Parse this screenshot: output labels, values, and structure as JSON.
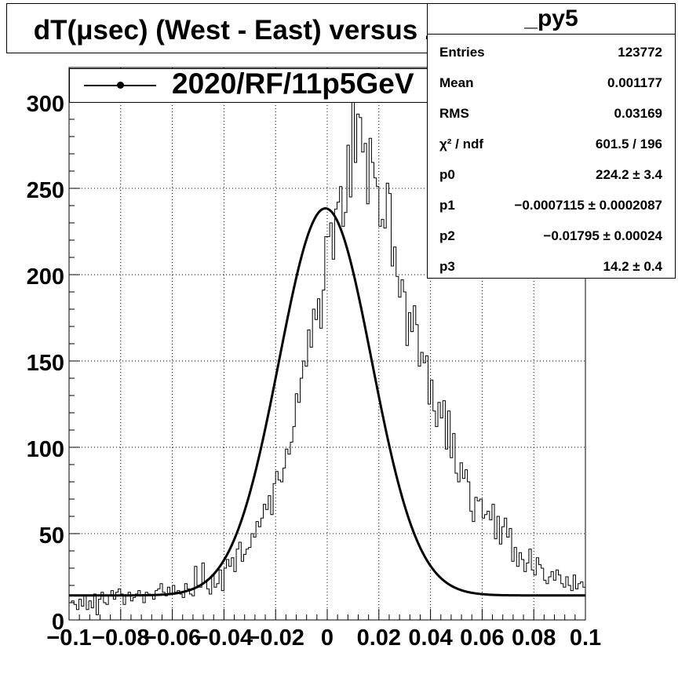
{
  "title": "dT(μsec) (West - East) versus Z",
  "legend": {
    "label": "2020/RF/11p5GeV"
  },
  "stats": {
    "name": "_py5",
    "rows": [
      {
        "key": "Entries",
        "value": "123772"
      },
      {
        "key": "Mean",
        "value": "0.001177"
      },
      {
        "key": "RMS",
        "value": "0.03169"
      },
      {
        "key": "χ² / ndf",
        "value": "601.5 / 196"
      },
      {
        "key": "p0",
        "value": "224.2 ± 3.4"
      },
      {
        "key": "p1",
        "value": "−0.0007115 ± 0.0002087"
      },
      {
        "key": "p2",
        "value": "−0.01795 ± 0.00024"
      },
      {
        "key": "p3",
        "value": "14.2 ± 0.4"
      }
    ]
  },
  "chart_data": {
    "type": "line",
    "xlim": [
      -0.1,
      0.1
    ],
    "ylim": [
      0,
      320
    ],
    "grid": true,
    "x_ticks": [
      -0.1,
      -0.08,
      -0.06,
      -0.04,
      -0.02,
      0,
      0.02,
      0.04,
      0.06,
      0.08,
      0.1
    ],
    "x_tick_labels": [
      "−0.1",
      "−0.08",
      "−0.06",
      "−0.04",
      "−0.02",
      "0",
      "0.02",
      "0.04",
      "0.06",
      "0.08",
      "0.1"
    ],
    "y_ticks": [
      0,
      50,
      100,
      150,
      200,
      250,
      300
    ],
    "y_tick_labels": [
      "0",
      "50",
      "100",
      "150",
      "200",
      "250",
      "300"
    ],
    "series": [
      {
        "name": "2020/RF/11p5GeV",
        "kind": "histogram",
        "bin_edges": [
          -0.1,
          0.1
        ],
        "values": [
          10,
          11,
          9,
          6,
          12,
          8,
          14,
          6,
          11,
          7,
          15,
          3,
          12,
          16,
          10,
          9,
          14,
          17,
          12,
          16,
          18,
          15,
          9,
          14,
          16,
          11,
          13,
          15,
          17,
          14,
          10,
          16,
          15,
          14,
          12,
          17,
          18,
          21,
          16,
          14,
          19,
          15,
          20,
          16,
          17,
          15,
          13,
          21,
          18,
          15,
          14,
          31,
          20,
          19,
          33,
          22,
          18,
          15,
          26,
          19,
          21,
          29,
          17,
          30,
          35,
          31,
          36,
          28,
          41,
          45,
          34,
          38,
          41,
          42,
          50,
          48,
          57,
          54,
          59,
          67,
          64,
          72,
          61,
          79,
          86,
          81,
          80,
          88,
          99,
          96,
          103,
          112,
          131,
          126,
          140,
          150,
          147,
          168,
          158,
          180,
          174,
          186,
          169,
          191,
          222,
          222,
          230,
          209,
          238,
          242,
          251,
          228,
          236,
          275,
          245,
          305,
          265,
          293,
          291,
          271,
          276,
          241,
          279,
          265,
          256,
          251,
          228,
          232,
          227,
          253,
          247,
          205,
          216,
          199,
          187,
          197,
          190,
          159,
          178,
          167,
          182,
          171,
          147,
          155,
          149,
          153,
          125,
          139,
          121,
          112,
          126,
          117,
          127,
          99,
          121,
          94,
          108,
          85,
          80,
          91,
          82,
          87,
          80,
          63,
          57,
          71,
          69,
          70,
          59,
          61,
          63,
          58,
          67,
          47,
          60,
          44,
          54,
          59,
          48,
          53,
          34,
          42,
          31,
          39,
          35,
          28,
          33,
          41,
          29,
          26,
          36,
          32,
          30,
          23,
          21,
          25,
          28,
          23,
          29,
          26,
          21,
          19,
          25,
          20,
          17,
          26,
          18,
          21,
          22,
          19
        ]
      },
      {
        "name": "fit",
        "kind": "function",
        "description": "p0*exp(-0.5*((x-p1)/p2)^2)+p3",
        "params": {
          "p0": 224.2,
          "p1": -0.0007115,
          "p2": 0.01795,
          "p3": 14.2
        }
      }
    ]
  }
}
